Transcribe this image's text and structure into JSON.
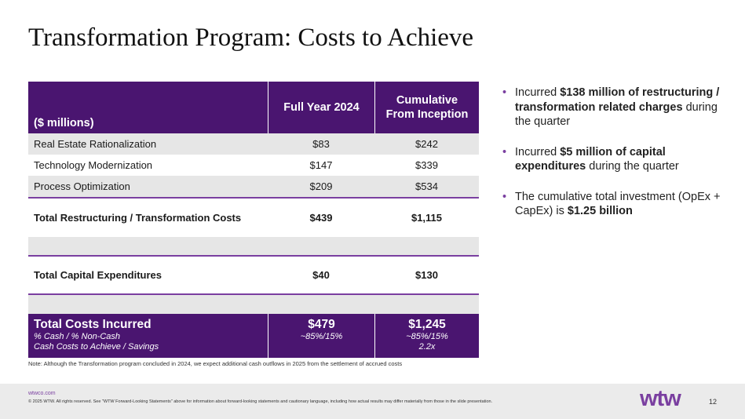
{
  "title": "Transformation Program: Costs to Achieve",
  "table": {
    "header": {
      "label": "($ millions)",
      "col1": "Full Year 2024",
      "col2_line1": "Cumulative",
      "col2_line2": "From Inception"
    },
    "rows": [
      {
        "label": "Real Estate Rationalization",
        "fy": "$83",
        "cum": "$242"
      },
      {
        "label": "Technology Modernization",
        "fy": "$147",
        "cum": "$339"
      },
      {
        "label": "Process Optimization",
        "fy": "$209",
        "cum": "$534"
      }
    ],
    "restructuring_total": {
      "label": "Total Restructuring / Transformation Costs",
      "fy": "$439",
      "cum": "$1,115"
    },
    "capex_total": {
      "label": "Total Capital Expenditures",
      "fy": "$40",
      "cum": "$130"
    },
    "costs_incurred": {
      "label": "Total Costs Incurred",
      "fy": "$479",
      "cum": "$1,245",
      "cash_label": "% Cash / % Non-Cash",
      "cash_fy": "~85%/15%",
      "cash_cum": "~85%/15%",
      "savings_label": "Cash Costs to Achieve / Savings",
      "savings_fy": "",
      "savings_cum": "2.2x"
    }
  },
  "note": "Note: Although the Transformation program concluded in 2024, we expect additional cash outflows in 2025 from the settlement of accrued costs",
  "bullets": [
    {
      "pre": "Incurred ",
      "bold": "$138 million of restructuring / transformation related charges",
      "post": " during the quarter"
    },
    {
      "pre": "Incurred ",
      "bold": "$5 million of capital expenditures",
      "post": " during the quarter"
    },
    {
      "pre": "The cumulative total investment (OpEx + CapEx) is ",
      "bold": "$1.25 billion",
      "post": ""
    }
  ],
  "footer": {
    "site": "wtwco.com",
    "copyright": "© 2025 WTW. All rights reserved. See \"WTW Forward-Looking Statements\" above for information about forward-looking statements and cautionary language, including how actual results may differ materially from those in the slide presentation.",
    "logo": "wtw",
    "page": "12"
  },
  "colors": {
    "brand_purple": "#4a1570",
    "accent_purple": "#7a3fa0",
    "row_shade": "#e6e6e6"
  }
}
